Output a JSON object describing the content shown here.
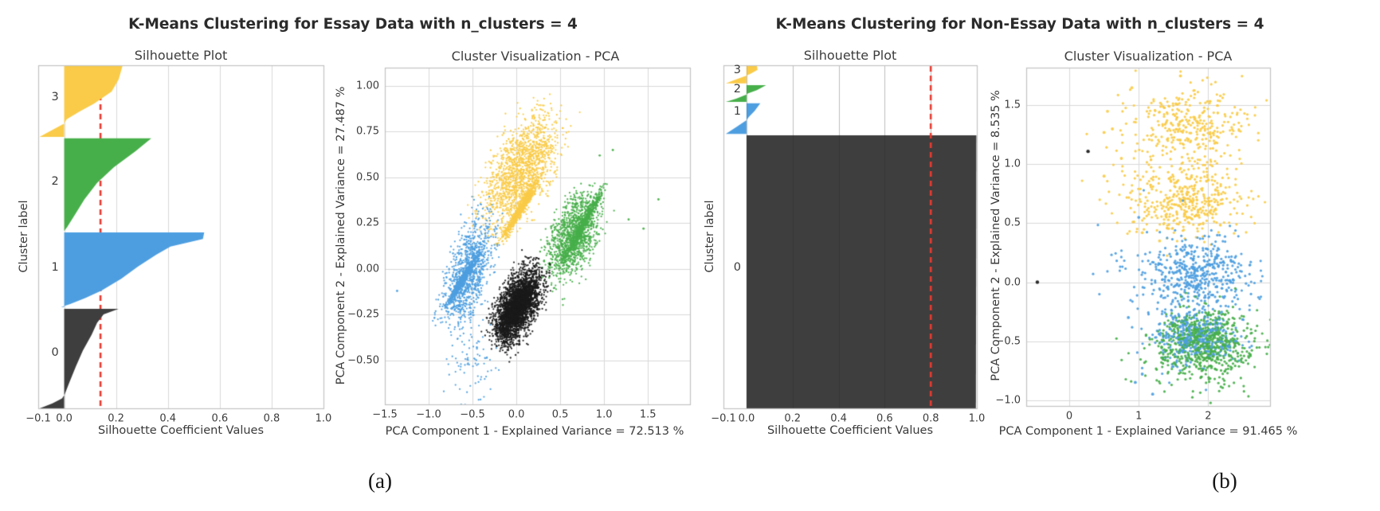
{
  "colors": {
    "cluster0": "#3e3e3e",
    "cluster1": "#4d9ee0",
    "cluster2": "#47af4a",
    "cluster3": "#facb48",
    "scatter_black": "#1a1a1a",
    "avg_line": "#e83a30",
    "grid": "#d9d9d9",
    "border": "#c2c2c2",
    "text": "#3a3a3a"
  },
  "chart_data": [
    {
      "type": "silhouette+scatter",
      "caption_label": "(a)",
      "title": "K-Means Clustering for Essay Data with n_clusters = 4",
      "silhouette": {
        "type": "area",
        "title": "Silhouette Plot",
        "xlabel": "Silhouette Coefficient Values",
        "ylabel": "Cluster label",
        "xrange": [
          -0.1,
          1.0
        ],
        "grid": true,
        "avg_score": 0.14,
        "avg_line_over_fills": false,
        "cluster_label_x": -0.035,
        "xticks": [
          {
            "v": -0.1,
            "t": "−0.1"
          },
          {
            "v": 0.0,
            "t": "0.0"
          },
          {
            "v": 0.2,
            "t": "0.2"
          },
          {
            "v": 0.4,
            "t": "0.4"
          },
          {
            "v": 0.6,
            "t": "0.6"
          },
          {
            "v": 0.8,
            "t": "0.8"
          },
          {
            "v": 1.0,
            "t": "1.0"
          }
        ],
        "clusters": [
          {
            "label": "3",
            "color": "cluster3",
            "band": [
              0.002,
              0.209
            ],
            "label_frac": 0.093,
            "profile": [
              [
                0,
                0.225
              ],
              [
                0.19,
                0.21
              ],
              [
                0.36,
                0.183
              ],
              [
                0.53,
                0.115
              ],
              [
                0.64,
                0.06
              ],
              [
                0.75,
                0.01
              ],
              [
                0.81,
                0.0
              ],
              [
                0.87,
                -0.03
              ],
              [
                0.93,
                -0.06
              ],
              [
                1,
                -0.095
              ]
            ]
          },
          {
            "label": "2",
            "color": "cluster2",
            "band": [
              0.213,
              0.483
            ],
            "label_frac": 0.339,
            "profile": [
              [
                0,
                0.336
              ],
              [
                0.14,
                0.275
              ],
              [
                0.31,
                0.192
              ],
              [
                0.48,
                0.127
              ],
              [
                0.66,
                0.078
              ],
              [
                0.83,
                0.04
              ],
              [
                0.96,
                0.011
              ],
              [
                1,
                0.0
              ]
            ]
          },
          {
            "label": "1",
            "color": "cluster1",
            "band": [
              0.487,
              0.705
            ],
            "label_frac": 0.589,
            "profile": [
              [
                0,
                0.54
              ],
              [
                0.09,
                0.535
              ],
              [
                0.19,
                0.41
              ],
              [
                0.3,
                0.355
              ],
              [
                0.46,
                0.284
              ],
              [
                0.62,
                0.22
              ],
              [
                0.78,
                0.143
              ],
              [
                0.88,
                0.081
              ],
              [
                0.96,
                0.023
              ],
              [
                1,
                -0.012
              ]
            ]
          },
          {
            "label": "0",
            "color": "cluster0",
            "band": [
              0.71,
              1.0
            ],
            "label_frac": 0.838,
            "profile": [
              [
                0,
                0.21
              ],
              [
                0.056,
                0.152
              ],
              [
                0.14,
                0.127
              ],
              [
                0.26,
                0.106
              ],
              [
                0.42,
                0.072
              ],
              [
                0.58,
                0.045
              ],
              [
                0.74,
                0.02
              ],
              [
                0.86,
                0.002
              ],
              [
                0.9,
                -0.008
              ],
              [
                0.95,
                -0.045
              ],
              [
                1,
                -0.094
              ]
            ]
          }
        ]
      },
      "pca": {
        "type": "scatter",
        "title": "Cluster Visualization - PCA",
        "xlabel": "PCA Component 1 - Explained Variance = 72.513 %",
        "ylabel": "PCA Component 2 - Explained Variance = 27.487 %",
        "xrange": [
          -1.5,
          1.98
        ],
        "yrange": [
          -0.74,
          1.1
        ],
        "grid": true,
        "xticks": [
          {
            "v": -1.5,
            "t": "−1.5"
          },
          {
            "v": -1.0,
            "t": "−1.0"
          },
          {
            "v": -0.5,
            "t": "−0.5"
          },
          {
            "v": 0.0,
            "t": "0.0"
          },
          {
            "v": 0.5,
            "t": "0.5"
          },
          {
            "v": 1.0,
            "t": "1.0"
          },
          {
            "v": 1.5,
            "t": "1.5"
          }
        ],
        "yticks": [
          {
            "v": 1.0,
            "t": "1.00"
          },
          {
            "v": 0.75,
            "t": "0.75"
          },
          {
            "v": 0.5,
            "t": "0.50"
          },
          {
            "v": 0.25,
            "t": "0.25"
          },
          {
            "v": 0.0,
            "t": "0.00"
          },
          {
            "v": -0.25,
            "t": "−0.25"
          },
          {
            "v": -0.5,
            "t": "−0.50"
          }
        ],
        "blobs": [
          {
            "kind": "slant",
            "color": "cluster3",
            "n": 1500,
            "c": [
              0.05,
              0.54
            ],
            "a": [
              0.5,
              0.44
            ],
            "w": [
              0.4,
              -0.12
            ],
            "seed": 11
          },
          {
            "kind": "slant",
            "color": "cluster3",
            "n": 700,
            "c": [
              0.05,
              0.33
            ],
            "a": [
              0.3,
              0.24
            ],
            "w": [
              0.05,
              -0.02
            ],
            "seed": 12
          },
          {
            "kind": "slant",
            "color": "cluster2",
            "n": 1200,
            "c": [
              0.65,
              0.18
            ],
            "a": [
              0.33,
              0.33
            ],
            "w": [
              0.28,
              -0.12
            ],
            "seed": 21
          },
          {
            "kind": "slant",
            "color": "cluster2",
            "n": 600,
            "c": [
              0.76,
              0.24
            ],
            "a": [
              0.3,
              0.26
            ],
            "w": [
              0.05,
              -0.02
            ],
            "seed": 22
          },
          {
            "kind": "points",
            "color": "cluster2",
            "pts": [
              [
                1.62,
                0.38
              ],
              [
                1.45,
                0.22
              ],
              [
                1.28,
                0.27
              ],
              [
                1.1,
                0.65
              ],
              [
                0.95,
                0.62
              ]
            ]
          },
          {
            "kind": "slant",
            "color": "cluster1",
            "n": 1000,
            "c": [
              -0.55,
              -0.02
            ],
            "a": [
              0.3,
              0.42
            ],
            "w": [
              0.28,
              -0.1
            ],
            "seed": 31
          },
          {
            "kind": "slant",
            "color": "cluster1",
            "n": 600,
            "c": [
              -0.6,
              -0.05
            ],
            "a": [
              0.26,
              0.2
            ],
            "w": [
              0.04,
              -0.015
            ],
            "seed": 32
          },
          {
            "kind": "gauss",
            "color": "cluster1",
            "n": 90,
            "c": [
              -0.5,
              -0.48
            ],
            "s": [
              0.12,
              0.14
            ],
            "seed": 33
          },
          {
            "kind": "points",
            "color": "cluster1",
            "pts": [
              [
                -1.36,
                -0.12
              ]
            ]
          },
          {
            "kind": "slant",
            "color": "scatter_black",
            "n": 2300,
            "c": [
              0.02,
              -0.2
            ],
            "a": [
              0.3,
              0.28
            ],
            "w": [
              0.25,
              -0.1
            ],
            "seed": 41
          },
          {
            "kind": "slant",
            "color": "scatter_black",
            "n": 900,
            "c": [
              0.0,
              -0.22
            ],
            "a": [
              0.26,
              0.22
            ],
            "w": [
              0.12,
              -0.05
            ],
            "seed": 42
          }
        ]
      }
    },
    {
      "type": "silhouette+scatter",
      "caption_label": "(b)",
      "title": "K-Means Clustering for Non-Essay Data with n_clusters = 4",
      "silhouette": {
        "type": "area",
        "title": "Silhouette Plot",
        "xlabel": "Silhouette Coefficient Values",
        "ylabel": "Cluster label",
        "xrange": [
          -0.1,
          1.0
        ],
        "grid": true,
        "avg_score": 0.8,
        "avg_line_over_fills": true,
        "cluster_label_x": -0.04,
        "xticks": [
          {
            "v": -0.1,
            "t": "−0.1"
          },
          {
            "v": 0.0,
            "t": "0.0"
          },
          {
            "v": 0.2,
            "t": "0.2"
          },
          {
            "v": 0.4,
            "t": "0.4"
          },
          {
            "v": 0.6,
            "t": "0.6"
          },
          {
            "v": 0.8,
            "t": "0.8"
          },
          {
            "v": 1.0,
            "t": "1.0"
          }
        ],
        "clusters": [
          {
            "label": "3",
            "color": "cluster3",
            "band": [
              0.0,
              0.053
            ],
            "label_frac": 0.014,
            "profile": [
              [
                0,
                0.045
              ],
              [
                0.25,
                0.048
              ],
              [
                0.45,
                0.02
              ],
              [
                0.57,
                0.0
              ],
              [
                0.8,
                -0.05
              ],
              [
                1,
                -0.09
              ]
            ]
          },
          {
            "label": "2",
            "color": "cluster2",
            "band": [
              0.058,
              0.107
            ],
            "label_frac": 0.07,
            "profile": [
              [
                0,
                0.085
              ],
              [
                0.3,
                0.045
              ],
              [
                0.5,
                0.005
              ],
              [
                0.56,
                0.0
              ],
              [
                0.8,
                -0.045
              ],
              [
                1,
                -0.09
              ]
            ]
          },
          {
            "label": "1",
            "color": "cluster1",
            "band": [
              0.111,
              0.2
            ],
            "label_frac": 0.135,
            "profile": [
              [
                0,
                0.06
              ],
              [
                0.25,
                0.035
              ],
              [
                0.45,
                0.01
              ],
              [
                0.55,
                0.0
              ],
              [
                0.78,
                -0.045
              ],
              [
                1,
                -0.09
              ]
            ]
          },
          {
            "label": "0",
            "color": "cluster0",
            "band": [
              0.204,
              1.0
            ],
            "label_frac": 0.59,
            "profile": [
              [
                0,
                0.998
              ],
              [
                1,
                0.996
              ]
            ]
          }
        ]
      },
      "pca": {
        "type": "scatter",
        "title": "Cluster Visualization - PCA",
        "xlabel": "PCA Component 1 - Explained Variance = 91.465 %",
        "ylabel": "PCA Component 2 - Explained Variance = 8.535 %",
        "xrange": [
          -0.62,
          2.89
        ],
        "yrange": [
          -1.05,
          1.82
        ],
        "grid": true,
        "xticks": [
          {
            "v": 0,
            "t": "0"
          },
          {
            "v": 1,
            "t": "1"
          },
          {
            "v": 2,
            "t": "2"
          }
        ],
        "yticks": [
          {
            "v": 1.5,
            "t": "1.5"
          },
          {
            "v": 1.0,
            "t": "1.0"
          },
          {
            "v": 0.5,
            "t": "0.5"
          },
          {
            "v": 0.0,
            "t": "0.0"
          },
          {
            "v": -0.5,
            "t": "−0.5"
          },
          {
            "v": -1.0,
            "t": "−1.0"
          }
        ],
        "blobs": [
          {
            "kind": "gauss",
            "color": "cluster3",
            "n": 270,
            "c": [
              1.75,
              1.32
            ],
            "s": [
              0.42,
              0.16
            ],
            "seed": 51
          },
          {
            "kind": "gauss",
            "color": "cluster3",
            "n": 80,
            "c": [
              1.5,
              1.33
            ],
            "s": [
              0.55,
              0.22
            ],
            "seed": 52
          },
          {
            "kind": "gauss",
            "color": "cluster3",
            "n": 330,
            "c": [
              1.72,
              0.68
            ],
            "s": [
              0.4,
              0.14
            ],
            "seed": 53
          },
          {
            "kind": "gauss",
            "color": "cluster3",
            "n": 90,
            "c": [
              1.45,
              0.75
            ],
            "s": [
              0.5,
              0.2
            ],
            "seed": 54
          },
          {
            "kind": "points",
            "color": "cluster3",
            "pts": [
              [
                0.55,
                1.45
              ],
              [
                0.5,
                1.27
              ],
              [
                0.62,
                1.3
              ],
              [
                0.75,
                1.05
              ],
              [
                0.5,
                0.9
              ],
              [
                1.05,
                0.42
              ],
              [
                1.3,
                0.35
              ],
              [
                0.9,
                1.65
              ],
              [
                1.6,
                1.75
              ]
            ]
          },
          {
            "kind": "gauss",
            "color": "cluster1",
            "n": 430,
            "c": [
              1.85,
              0.08
            ],
            "s": [
              0.38,
              0.15
            ],
            "seed": 61
          },
          {
            "kind": "gauss",
            "color": "cluster1",
            "n": 90,
            "c": [
              1.6,
              0.05
            ],
            "s": [
              0.5,
              0.22
            ],
            "seed": 62
          },
          {
            "kind": "gauss",
            "color": "cluster1",
            "n": 260,
            "c": [
              1.83,
              -0.48
            ],
            "s": [
              0.32,
              0.12
            ],
            "seed": 63
          },
          {
            "kind": "points",
            "color": "cluster1",
            "pts": [
              [
                0.95,
                -0.85
              ],
              [
                1.05,
                -0.78
              ],
              [
                0.85,
                -0.3
              ],
              [
                1.0,
                0.55
              ],
              [
                1.2,
                -0.95
              ]
            ]
          },
          {
            "kind": "gauss",
            "color": "cluster2",
            "n": 600,
            "c": [
              1.95,
              -0.53
            ],
            "s": [
              0.34,
              0.14
            ],
            "seed": 71
          },
          {
            "kind": "gauss",
            "color": "cluster2",
            "n": 90,
            "c": [
              1.75,
              -0.6
            ],
            "s": [
              0.45,
              0.2
            ],
            "seed": 72
          },
          {
            "kind": "gauss",
            "color": "cluster1",
            "n": 120,
            "c": [
              1.8,
              -0.45
            ],
            "s": [
              0.3,
              0.1
            ],
            "seed": 64
          },
          {
            "kind": "points",
            "color": "scatter_black",
            "r": 2.2,
            "pts": [
              [
                0.27,
                1.11
              ],
              [
                -0.46,
                0.0
              ]
            ]
          }
        ]
      }
    }
  ]
}
